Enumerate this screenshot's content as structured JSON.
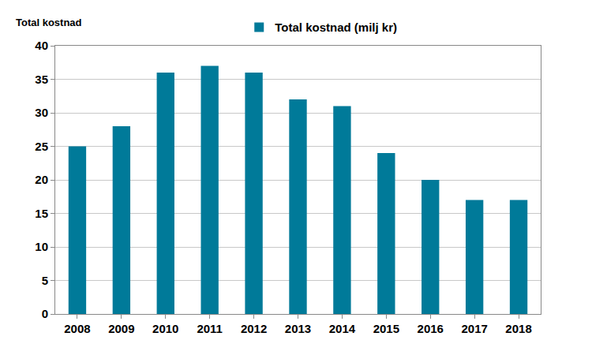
{
  "chart_data": {
    "type": "bar",
    "y_label": "Total kostnad",
    "categories": [
      "2008",
      "2009",
      "2010",
      "2011",
      "2012",
      "2013",
      "2014",
      "2015",
      "2016",
      "2017",
      "2018"
    ],
    "series": [
      {
        "name": "Total kostnad (milj kr)",
        "color": "#007a99",
        "values": [
          25,
          28,
          36,
          37,
          36,
          32,
          31,
          24,
          20,
          17,
          17
        ]
      }
    ],
    "ylim": [
      0,
      40
    ],
    "yticks": [
      0,
      5,
      10,
      15,
      20,
      25,
      30,
      35,
      40
    ],
    "grid": true,
    "legend": "top"
  }
}
